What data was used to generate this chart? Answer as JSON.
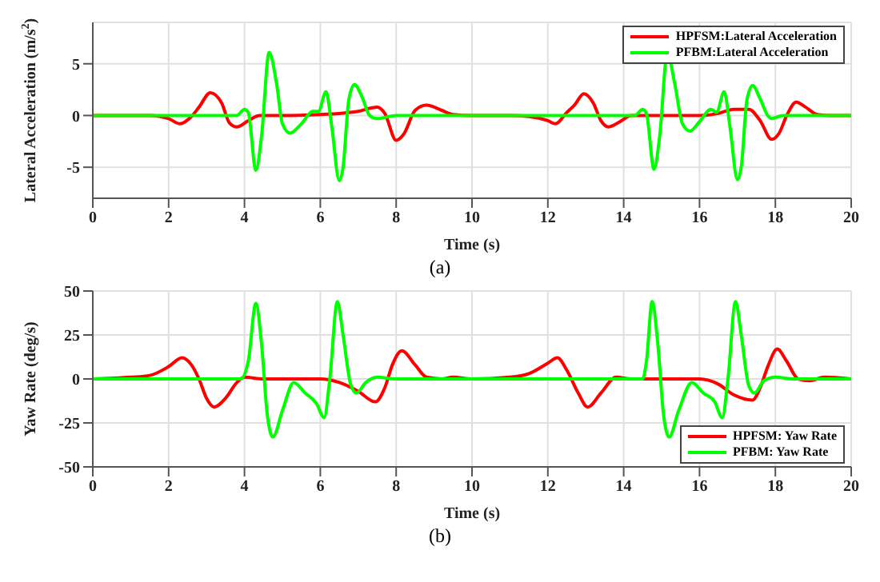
{
  "chart_data": [
    {
      "type": "line",
      "xlabel": "Time (s)",
      "ylabel": "Lateral Acceleration (m/s$^{2}$)",
      "xlim": [
        0,
        20
      ],
      "xticks": [
        0,
        2,
        4,
        6,
        8,
        10,
        12,
        14,
        16,
        18,
        20
      ],
      "ylim": [
        -8,
        9
      ],
      "yticks": [
        -5,
        0,
        5
      ],
      "grid": true,
      "legend": "top right",
      "annotations": [
        "(a)"
      ],
      "series": [
        {
          "name": "HPFSM:Lateral Acceleration",
          "color": "#ff0000",
          "x": [
            0,
            1,
            1.5,
            2,
            2.3,
            2.6,
            2.8,
            3.1,
            3.4,
            3.6,
            3.8,
            4.1,
            4.4,
            5,
            6,
            6.5,
            7,
            7.5,
            7.7,
            8,
            8.2,
            8.5,
            8.8,
            9.2,
            9.5,
            10,
            11,
            11.5,
            12,
            12.2,
            12.5,
            12.7,
            12.95,
            13.2,
            13.4,
            13.6,
            13.9,
            14.2,
            15,
            16,
            16.5,
            16.9,
            17.3,
            17.6,
            17.9,
            18.1,
            18.3,
            18.55,
            18.8,
            19.1,
            19.5,
            20
          ],
          "values": [
            0,
            0,
            0,
            -0.3,
            -0.8,
            -0.1,
            0.8,
            2.2,
            1.2,
            -0.7,
            -1.1,
            -0.5,
            0,
            0,
            0.1,
            0.2,
            0.4,
            0.8,
            0.2,
            -2.4,
            -1.8,
            0.5,
            1.0,
            0.5,
            0.1,
            0,
            0,
            -0.1,
            -0.5,
            -0.8,
            0.3,
            1,
            2.1,
            1.2,
            -0.5,
            -1.1,
            -0.6,
            0,
            0,
            0,
            0.2,
            0.6,
            0.6,
            -0.5,
            -2.3,
            -1.7,
            0,
            1.3,
            0.8,
            0.1,
            0,
            0
          ]
        },
        {
          "name": "PFBM:Lateral Acceleration",
          "color": "#00ff00",
          "x": [
            0,
            3.8,
            4,
            4.1,
            4.3,
            4.45,
            4.65,
            4.85,
            5.0,
            5.2,
            5.5,
            5.8,
            5.95,
            6.15,
            6.3,
            6.5,
            6.6,
            6.75,
            6.9,
            7.1,
            7.3,
            7.5,
            8,
            14.3,
            14.5,
            14.6,
            14.8,
            14.95,
            15.15,
            15.35,
            15.55,
            15.75,
            16,
            16.3,
            16.45,
            16.65,
            16.8,
            17,
            17.1,
            17.25,
            17.4,
            17.6,
            17.8,
            17.9,
            18.2,
            20
          ],
          "values": [
            0,
            0,
            0.6,
            0.3,
            -5.3,
            -2,
            6.1,
            3,
            -0.8,
            -1.7,
            -0.8,
            0.4,
            0.4,
            2.3,
            -1,
            -6.3,
            -5,
            1.5,
            3.0,
            1.8,
            0,
            -0.3,
            0,
            0,
            0.6,
            0.2,
            -5.2,
            -2,
            6.0,
            3,
            -0.8,
            -1.5,
            -0.6,
            0.6,
            0.3,
            2.3,
            -1,
            -6.2,
            -5,
            1.5,
            2.9,
            1.6,
            0,
            -0.3,
            0,
            0
          ]
        }
      ]
    },
    {
      "type": "line",
      "xlabel": "Time (s)",
      "ylabel": "Yaw Rate (deg/s)",
      "xlim": [
        0,
        20
      ],
      "xticks": [
        0,
        2,
        4,
        6,
        8,
        10,
        12,
        14,
        16,
        18,
        20
      ],
      "ylim": [
        -50,
        50
      ],
      "yticks": [
        -50,
        -25,
        0,
        25,
        50
      ],
      "grid": true,
      "legend": "bottom right",
      "annotations": [
        "(b)"
      ],
      "series": [
        {
          "name": "HPFSM: Yaw Rate",
          "color": "#ff0000",
          "x": [
            0,
            1,
            1.5,
            2,
            2.35,
            2.6,
            2.8,
            3,
            3.2,
            3.5,
            3.8,
            4,
            4.5,
            5,
            5.5,
            6,
            6.5,
            7,
            7.45,
            7.7,
            7.9,
            8.15,
            8.5,
            8.8,
            9.2,
            9.5,
            10,
            11,
            11.5,
            12,
            12.25,
            12.5,
            12.8,
            13.05,
            13.4,
            13.8,
            14.2,
            15,
            16,
            16.5,
            16.9,
            17.4,
            17.6,
            17.8,
            18.05,
            18.3,
            18.6,
            18.9,
            19.3,
            20
          ],
          "values": [
            0,
            1,
            2,
            7,
            12,
            8,
            0,
            -11,
            -16,
            -11,
            -2,
            1,
            0,
            0,
            0,
            0,
            -2,
            -7,
            -13,
            -5,
            8,
            16,
            8,
            1,
            0,
            1,
            0,
            1,
            3,
            9,
            12,
            5,
            -8,
            -16,
            -8,
            1,
            0,
            0,
            0,
            -3,
            -9,
            -12,
            -5,
            7,
            17,
            10,
            0,
            -1,
            1,
            0
          ]
        },
        {
          "name": "PFBM: Yaw Rate",
          "color": "#00ff00",
          "x": [
            0,
            3.9,
            4.1,
            4.3,
            4.45,
            4.6,
            4.75,
            5.0,
            5.3,
            5.6,
            5.9,
            6.1,
            6.25,
            6.45,
            6.6,
            6.8,
            6.95,
            7.2,
            7.5,
            8,
            14.5,
            14.6,
            14.75,
            14.9,
            15.05,
            15.2,
            15.45,
            15.8,
            16.1,
            16.4,
            16.6,
            16.75,
            16.95,
            17.1,
            17.3,
            17.45,
            17.7,
            18,
            18.5,
            20
          ],
          "values": [
            0,
            0,
            10,
            43,
            20,
            -20,
            -33,
            -18,
            -2,
            -8,
            -14,
            -22,
            0,
            44,
            25,
            -3,
            -8,
            -2,
            1,
            0,
            0,
            10,
            44,
            20,
            -20,
            -33,
            -18,
            -2,
            -8,
            -13,
            -22,
            0,
            44,
            25,
            -4,
            -8,
            -1,
            1,
            0,
            0
          ]
        }
      ]
    }
  ]
}
